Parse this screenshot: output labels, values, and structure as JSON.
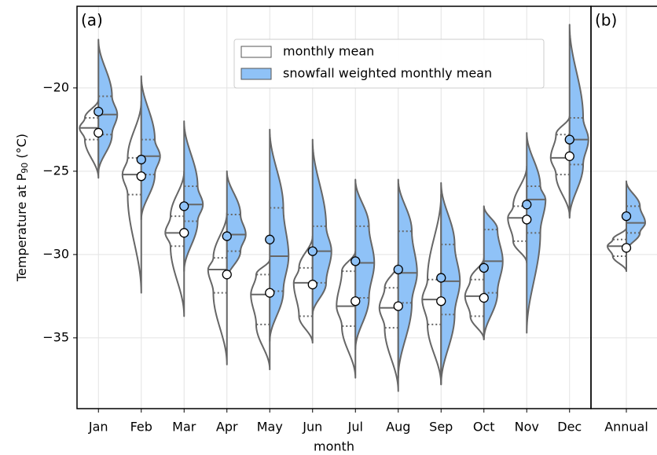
{
  "chart_data": {
    "type": "violin",
    "panel_labels": [
      "(a)",
      "(b)"
    ],
    "ylabel_parts": [
      "Temperature at P",
      "90",
      " (°C)"
    ],
    "xlabel": "month",
    "categories": [
      "Jan",
      "Feb",
      "Mar",
      "Apr",
      "May",
      "Jun",
      "Jul",
      "Aug",
      "Sep",
      "Oct",
      "Nov",
      "Dec",
      "Annual"
    ],
    "ylim": [
      -39.25,
      -15.1
    ],
    "yticks": [
      {
        "value": -20,
        "label": "−20"
      },
      {
        "value": -25,
        "label": "−25"
      },
      {
        "value": -30,
        "label": "−30"
      },
      {
        "value": -35,
        "label": "−35"
      }
    ],
    "grid": true,
    "legend": "top",
    "series": [
      {
        "name": "monthly mean",
        "color": "#ffffff",
        "side": "left",
        "min": [
          -25.4,
          -32.3,
          -33.7,
          -36.6,
          -36.9,
          -35.3,
          -37.4,
          -38.2,
          -37.8,
          -35.1,
          -30.5,
          -27.7,
          -31.0
        ],
        "q1": [
          -23.1,
          -26.4,
          -29.5,
          -32.3,
          -34.2,
          -33.7,
          -34.3,
          -34.4,
          -34.2,
          -33.7,
          -29.2,
          -25.2,
          -30.1
        ],
        "median": [
          -22.4,
          -25.2,
          -28.7,
          -30.9,
          -32.4,
          -31.7,
          -33.1,
          -33.2,
          -32.7,
          -32.5,
          -27.8,
          -24.2,
          -29.5
        ],
        "q3": [
          -21.8,
          -24.2,
          -27.7,
          -30.2,
          -31.2,
          -30.8,
          -31.0,
          -32.0,
          -31.5,
          -31.5,
          -27.1,
          -22.8,
          -29.1
        ],
        "max": [
          -20.7,
          -20.8,
          -25.0,
          -27.5,
          -30.3,
          -28.9,
          -29.8,
          -30.5,
          -26.4,
          -30.2,
          -24.7,
          -21.7,
          -28.4
        ],
        "mean": [
          -22.69,
          -25.3,
          -28.7,
          -31.2,
          -32.3,
          -31.8,
          -32.8,
          -33.1,
          -32.8,
          -32.6,
          -27.9,
          -24.1,
          -29.6
        ]
      },
      {
        "name": "snowfall weighted monthly mean",
        "color": "#8fc2f7",
        "side": "right",
        "min": [
          -25.1,
          -27.9,
          -31.0,
          -31.5,
          -35.2,
          -33.6,
          -35.7,
          -37.4,
          -37.8,
          -35.1,
          -34.7,
          -27.8,
          -29.8
        ],
        "q1": [
          -22.8,
          -25.2,
          -28.0,
          -29.8,
          -32.2,
          -31.7,
          -32.6,
          -32.9,
          -33.6,
          -32.3,
          -28.7,
          -24.6,
          -28.7
        ],
        "median": [
          -21.6,
          -24.1,
          -27.0,
          -28.8,
          -30.1,
          -29.8,
          -30.5,
          -31.1,
          -31.6,
          -30.4,
          -26.7,
          -23.1,
          -28.1
        ],
        "q3": [
          -20.5,
          -23.1,
          -25.9,
          -27.6,
          -27.2,
          -28.3,
          -28.3,
          -28.6,
          -29.4,
          -28.5,
          -25.9,
          -21.8,
          -27.1
        ],
        "max": [
          -17.1,
          -19.3,
          -22.0,
          -25.0,
          -22.5,
          -23.1,
          -25.5,
          -25.5,
          -25.7,
          -27.1,
          -22.7,
          -16.2,
          -25.6
        ],
        "mean": [
          -21.42,
          -24.3,
          -27.1,
          -28.9,
          -29.1,
          -29.8,
          -30.4,
          -30.9,
          -31.4,
          -30.8,
          -27.0,
          -23.1,
          -27.7
        ]
      }
    ]
  }
}
